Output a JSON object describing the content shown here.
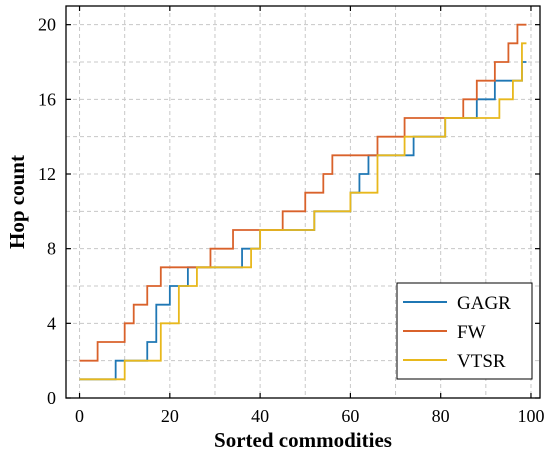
{
  "chart_data": {
    "type": "line",
    "step": true,
    "xlabel": "Sorted commodities",
    "ylabel": "Hop count",
    "xlim": [
      -3,
      102
    ],
    "ylim": [
      0,
      21
    ],
    "xticks": [
      0,
      20,
      40,
      60,
      80,
      100
    ],
    "yticks": [
      0,
      4,
      8,
      12,
      16,
      20
    ],
    "grid": true,
    "legend_position": "bottom-right",
    "colors": {
      "GAGR": "#1f77b4",
      "FW": "#d9622b",
      "VTSR": "#e8b81c"
    },
    "series": [
      {
        "name": "GAGR",
        "color": "#1f77b4",
        "x": [
          0,
          8,
          12,
          15,
          17,
          20,
          24,
          36,
          40,
          52,
          60,
          62,
          64,
          66,
          74,
          81,
          88,
          92,
          94,
          98,
          99
        ],
        "y": [
          1,
          2,
          2,
          3,
          5,
          6,
          7,
          8,
          9,
          10,
          11,
          12,
          13,
          13,
          14,
          15,
          16,
          17,
          17,
          18,
          18
        ]
      },
      {
        "name": "FW",
        "color": "#d9622b",
        "x": [
          0,
          4,
          10,
          12,
          15,
          18,
          20,
          29,
          34,
          45,
          50,
          52,
          54,
          56,
          58,
          66,
          72,
          85,
          88,
          92,
          95,
          97,
          99
        ],
        "y": [
          2,
          3,
          4,
          5,
          6,
          7,
          7,
          8,
          9,
          10,
          11,
          11,
          12,
          13,
          13,
          14,
          15,
          16,
          17,
          18,
          19,
          20,
          20
        ]
      },
      {
        "name": "VTSR",
        "color": "#e8b81c",
        "x": [
          0,
          10,
          14,
          18,
          22,
          26,
          38,
          40,
          52,
          60,
          62,
          66,
          72,
          81,
          86,
          90,
          93,
          96,
          98,
          99
        ],
        "y": [
          1,
          2,
          2,
          4,
          6,
          7,
          8,
          9,
          10,
          11,
          11,
          13,
          14,
          15,
          15,
          15,
          16,
          17,
          19,
          19
        ]
      }
    ]
  }
}
